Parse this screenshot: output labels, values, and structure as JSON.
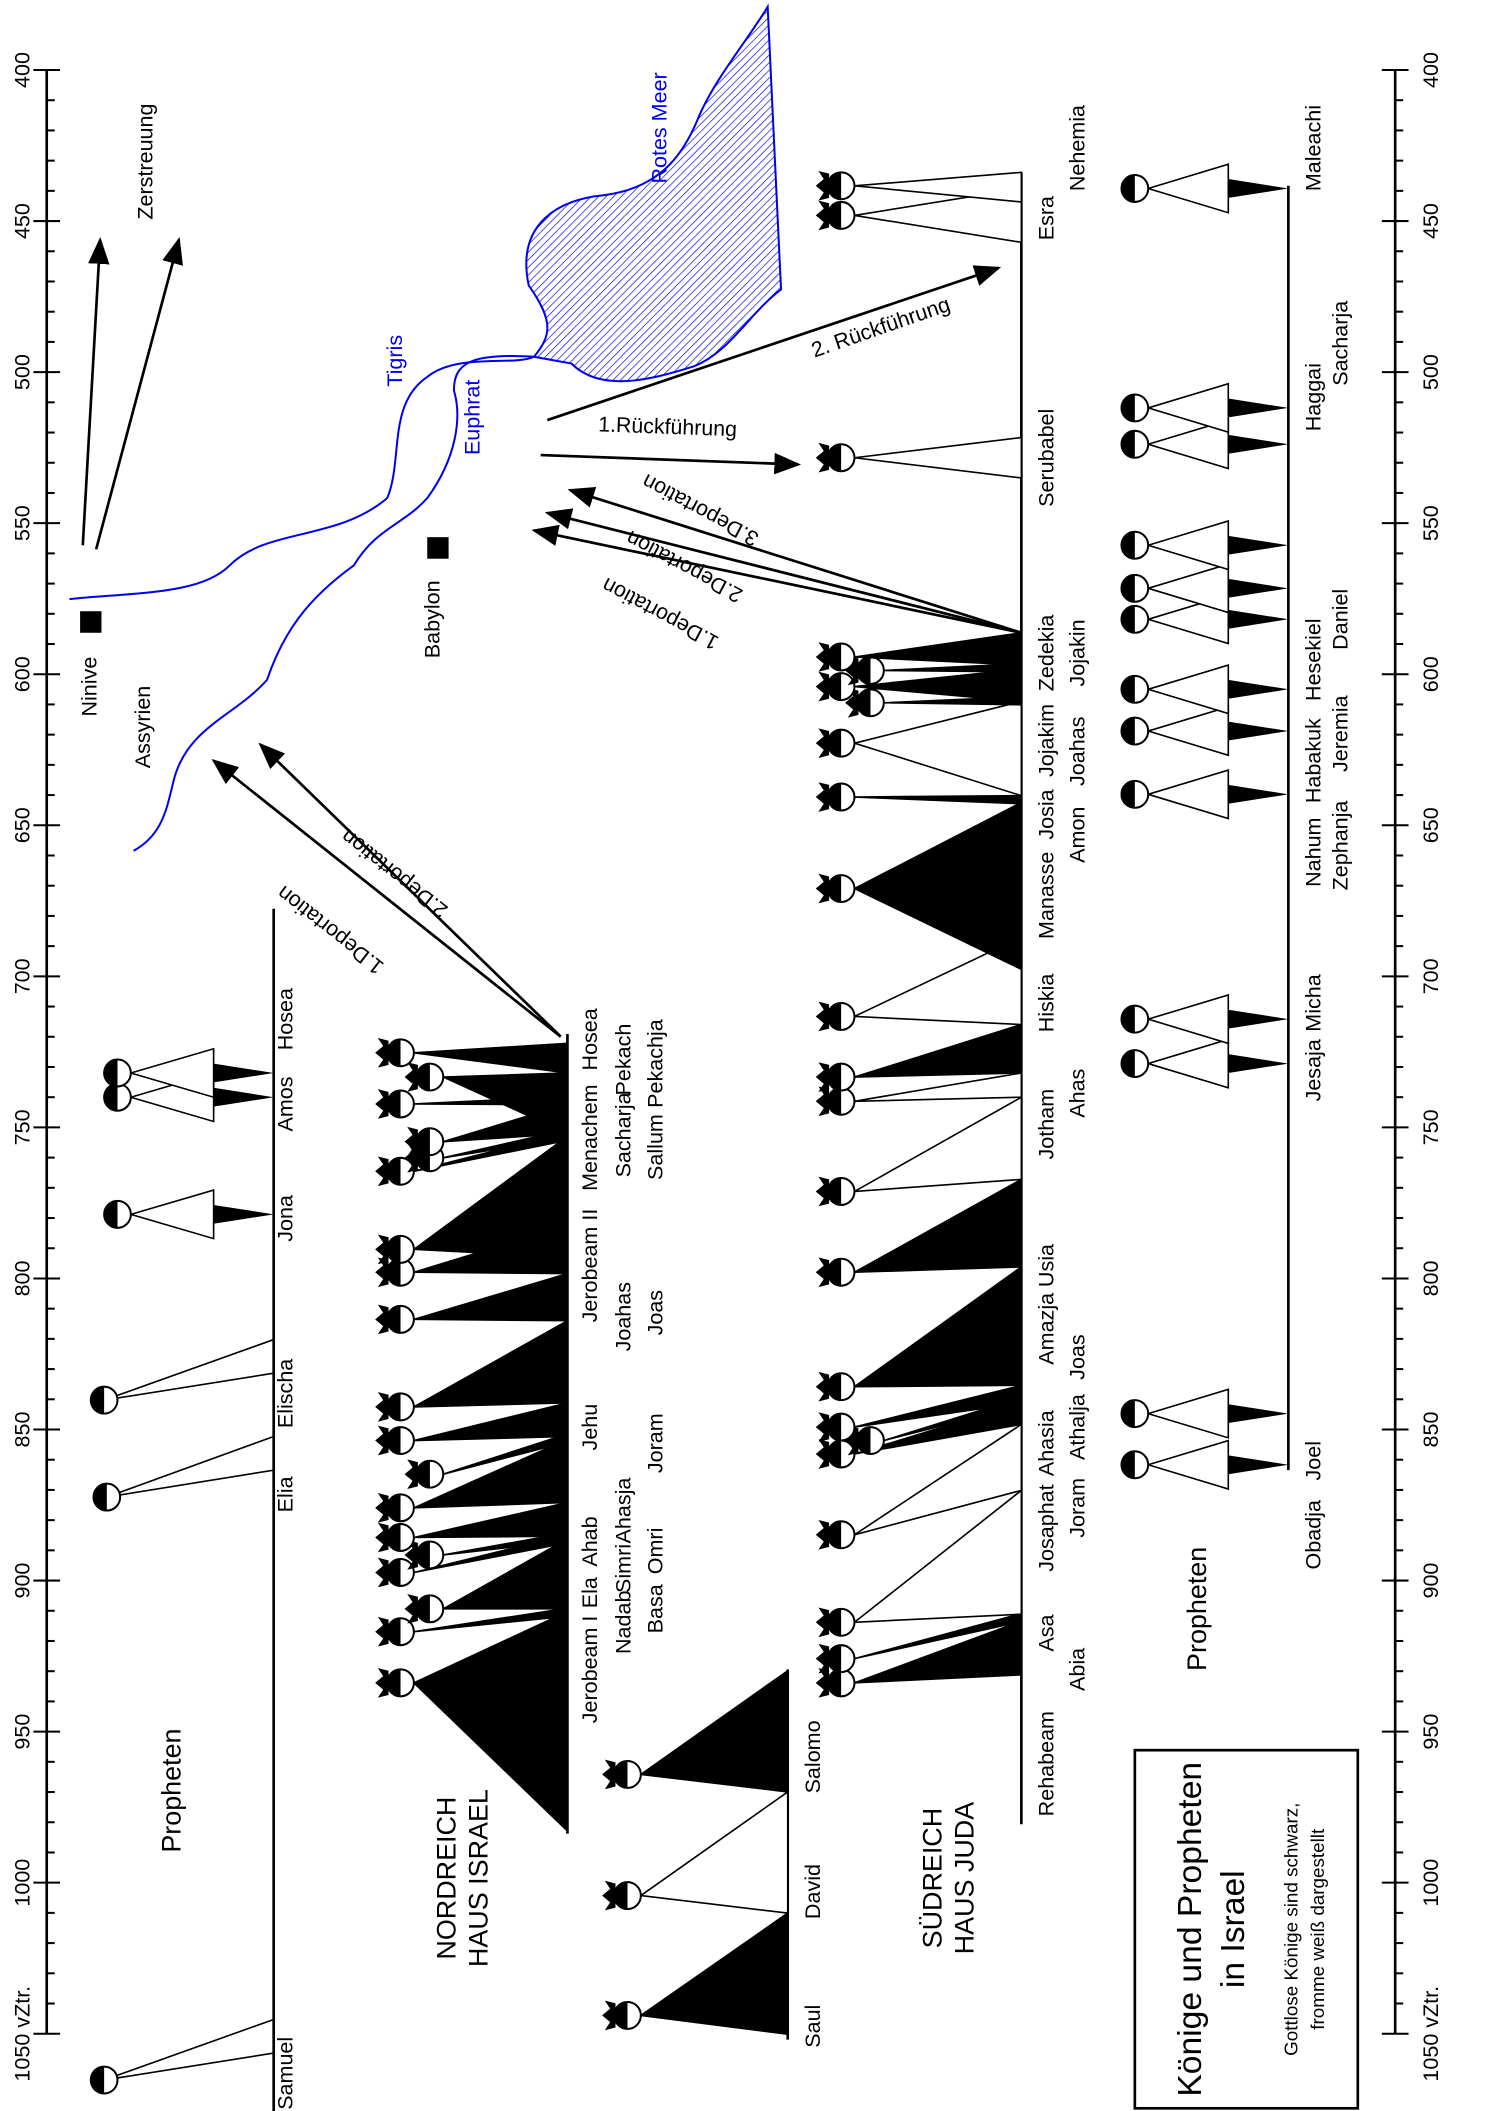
{
  "axis_labels": [
    "400",
    "450",
    "500",
    "550",
    "600",
    "650",
    "700",
    "750",
    "800",
    "850",
    "900",
    "950",
    "1000",
    "1050 vZtr."
  ],
  "map": {
    "zerstreuung": "Zerstreuung",
    "ninive": "Ninive",
    "assyrien": "Assyrien",
    "babylon": "Babylon",
    "tigris": "Tigris",
    "euphrat": "Euphrat",
    "rotes_meer": "Rotes Meer"
  },
  "arrows": {
    "israel_deportation_1": "1.Deportation",
    "israel_deportation_2": "2.Deportation",
    "juda_deportation_1": "1.Deportation",
    "juda_deportation_2": "2.Deportation",
    "juda_deportation_3": "3.Deportation",
    "rueckfuehrung_1": "1.Rückführung",
    "rueckfuehrung_2": "2. Rückführung"
  },
  "united_kingdom": [
    "Saul",
    "David",
    "Salomo"
  ],
  "israel": {
    "title": [
      "NORDREICH",
      "HAUS ISRAEL"
    ],
    "kings": [
      "Jerobeam I",
      "Nadab",
      "Basa",
      "Ela",
      "Simri",
      "Omri",
      "Ahab",
      "Ahasja",
      "Joram",
      "Jehu",
      "Joahas",
      "Joas",
      "Jerobeam II",
      "Sacharja",
      "Sallum",
      "Menachem",
      "Pekachja",
      "Pekach",
      "Hosea"
    ]
  },
  "juda": {
    "title": [
      "SÜDREICH",
      "HAUS JUDA"
    ],
    "persons": [
      "Rehabeam",
      "Abia",
      "Asa",
      "Josaphat",
      "Joram",
      "Ahasia",
      "Athalja",
      "Joas",
      "Amazja",
      "Usia",
      "Jotham",
      "Ahas",
      "Hiskia",
      "Manasse",
      "Amon",
      "Josia",
      "Joahas",
      "Jojakim",
      "Jojakin",
      "Zedekia",
      "Serubabel",
      "Esra",
      "Nehemia"
    ]
  },
  "prophets_north": {
    "title": "Propheten",
    "names": [
      "Samuel",
      "Elia",
      "Elischa",
      "Jona",
      "Amos",
      "Hosea"
    ]
  },
  "prophets_south": {
    "title": "Propheten",
    "names": [
      "Obadja",
      "Joel",
      "Jesaja",
      "Micha",
      "Nahum",
      "Habakuk",
      "Hesekiel",
      "Zephanja",
      "Jeremia",
      "Daniel",
      "Haggai",
      "Sacharja",
      "Maleachi"
    ]
  },
  "legend": {
    "title": [
      "Könige und Propheten",
      "in Israel"
    ],
    "text": [
      "Gottlose Könige sind schwarz,",
      "fromme weiß dargestellt"
    ]
  }
}
